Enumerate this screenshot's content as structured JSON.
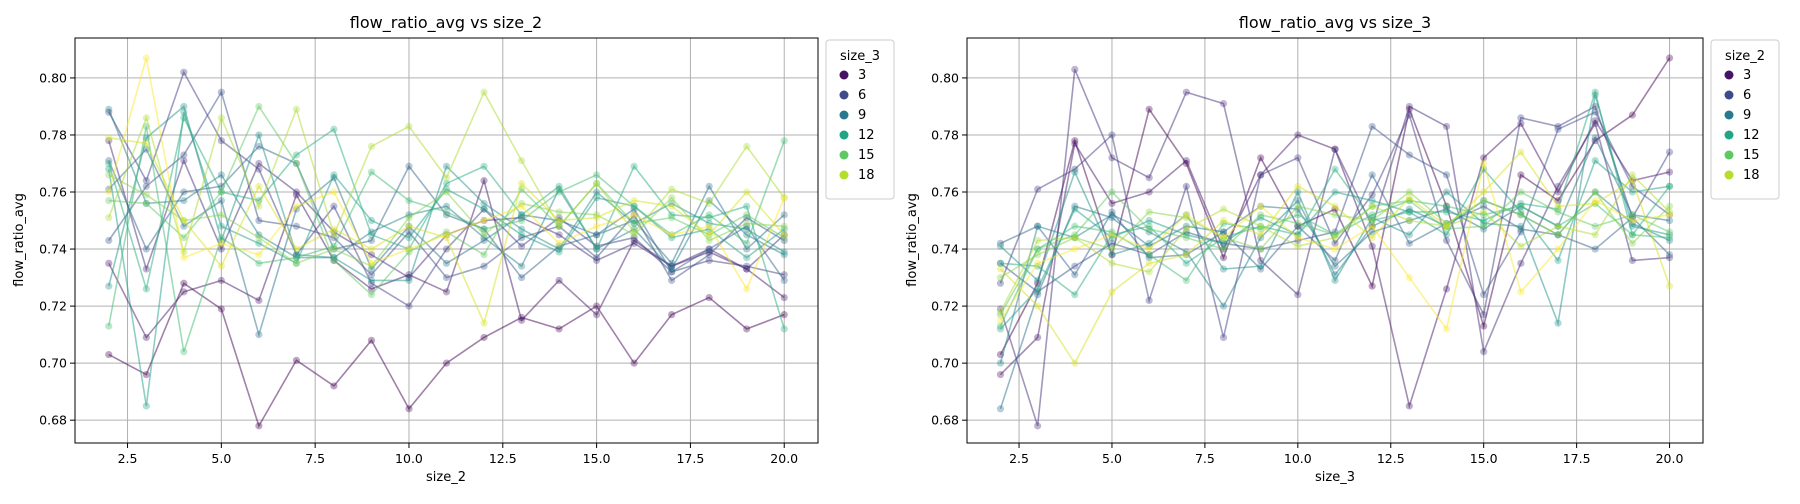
{
  "chart_data": [
    {
      "type": "line",
      "title": "flow_ratio_avg vs size_2",
      "xlabel": "size_2",
      "ylabel": "flow_ratio_avg",
      "xlim": [
        1.1,
        20.9
      ],
      "ylim": [
        0.672,
        0.814
      ],
      "xticks": [
        2.5,
        5.0,
        7.5,
        10.0,
        12.5,
        15.0,
        17.5,
        20.0
      ],
      "xtick_labels": [
        "2.5",
        "5.0",
        "7.5",
        "10.0",
        "12.5",
        "15.0",
        "17.5",
        "20.0"
      ],
      "yticks": [
        0.68,
        0.7,
        0.72,
        0.74,
        0.76,
        0.78,
        0.8
      ],
      "ytick_labels": [
        "0.68",
        "0.70",
        "0.72",
        "0.74",
        "0.76",
        "0.78",
        "0.80"
      ],
      "grid": true,
      "legend_placement": "outside-right-top",
      "legend_title": "size_3",
      "legend": [
        {
          "label": "3",
          "color": "#471365"
        },
        {
          "label": "6",
          "color": "#3e4a89"
        },
        {
          "label": "9",
          "color": "#2a788e"
        },
        {
          "label": "12",
          "color": "#21a585"
        },
        {
          "label": "15",
          "color": "#5ec962"
        },
        {
          "label": "18",
          "color": "#b5de2b"
        }
      ],
      "x": [
        2,
        3,
        4,
        5,
        6,
        7,
        8,
        9,
        10,
        11,
        12,
        13,
        14,
        15,
        16,
        17,
        18,
        19,
        20
      ],
      "series": [
        {
          "color": "#440154",
          "values": [
            0.703,
            0.696,
            0.728,
            0.719,
            0.678,
            0.701,
            0.692,
            0.708,
            0.684,
            0.7,
            0.709,
            0.716,
            0.712,
            0.72,
            0.7,
            0.717,
            0.723,
            0.712,
            0.717
          ]
        },
        {
          "color": "#48186a",
          "values": [
            0.735,
            0.709,
            0.725,
            0.729,
            0.722,
            0.759,
            0.736,
            0.726,
            0.731,
            0.725,
            0.764,
            0.715,
            0.729,
            0.717,
            0.743,
            0.734,
            0.739,
            0.733,
            0.723
          ]
        },
        {
          "color": "#472d7b",
          "values": [
            0.778,
            0.733,
            0.771,
            0.74,
            0.77,
            0.76,
            0.746,
            0.738,
            0.73,
            0.745,
            0.75,
            0.751,
            0.745,
            0.736,
            0.742,
            0.734,
            0.74,
            0.733,
            0.745
          ]
        },
        {
          "color": "#424086",
          "values": [
            0.788,
            0.764,
            0.802,
            0.778,
            0.768,
            0.738,
            0.755,
            0.728,
            0.72,
            0.74,
            0.754,
            0.741,
            0.751,
            0.741,
            0.744,
            0.732,
            0.736,
            0.734,
            0.731
          ]
        },
        {
          "color": "#3b528b",
          "values": [
            0.743,
            0.762,
            0.773,
            0.795,
            0.75,
            0.748,
            0.744,
            0.731,
            0.746,
            0.73,
            0.734,
            0.744,
            0.748,
            0.737,
            0.752,
            0.729,
            0.738,
            0.751,
            0.743
          ]
        },
        {
          "color": "#33638d",
          "values": [
            0.771,
            0.74,
            0.76,
            0.762,
            0.776,
            0.77,
            0.74,
            0.743,
            0.769,
            0.752,
            0.747,
            0.73,
            0.741,
            0.745,
            0.754,
            0.732,
            0.74,
            0.748,
            0.729
          ]
        },
        {
          "color": "#2c728e",
          "values": [
            0.761,
            0.775,
            0.748,
            0.757,
            0.71,
            0.754,
            0.765,
            0.733,
            0.748,
            0.735,
            0.743,
            0.752,
            0.75,
            0.745,
            0.75,
            0.735,
            0.762,
            0.74,
            0.752
          ]
        },
        {
          "color": "#26828e",
          "values": [
            0.789,
            0.756,
            0.757,
            0.766,
            0.745,
            0.737,
            0.737,
            0.746,
            0.752,
            0.755,
            0.744,
            0.734,
            0.761,
            0.74,
            0.747,
            0.733,
            0.757,
            0.745,
            0.738
          ]
        },
        {
          "color": "#21918c",
          "values": [
            0.727,
            0.779,
            0.79,
            0.743,
            0.78,
            0.738,
            0.737,
            0.729,
            0.729,
            0.769,
            0.756,
            0.747,
            0.74,
            0.76,
            0.749,
            0.756,
            0.749,
            0.747,
            0.739
          ]
        },
        {
          "color": "#1fa088",
          "values": [
            0.768,
            0.685,
            0.788,
            0.748,
            0.742,
            0.735,
            0.766,
            0.75,
            0.744,
            0.761,
            0.754,
            0.745,
            0.739,
            0.758,
            0.755,
            0.744,
            0.747,
            0.737,
            0.747
          ]
        },
        {
          "color": "#28ae80",
          "values": [
            0.77,
            0.726,
            0.786,
            0.76,
            0.757,
            0.773,
            0.782,
            0.745,
            0.74,
            0.763,
            0.769,
            0.752,
            0.762,
            0.74,
            0.769,
            0.752,
            0.751,
            0.755,
            0.712
          ]
        },
        {
          "color": "#3fbc73",
          "values": [
            0.713,
            0.783,
            0.704,
            0.744,
            0.735,
            0.737,
            0.741,
            0.767,
            0.757,
            0.753,
            0.747,
            0.75,
            0.76,
            0.766,
            0.755,
            0.745,
            0.752,
            0.742,
            0.778
          ]
        },
        {
          "color": "#5ec962",
          "values": [
            0.757,
            0.756,
            0.744,
            0.76,
            0.79,
            0.77,
            0.736,
            0.724,
            0.739,
            0.746,
            0.738,
            0.761,
            0.748,
            0.763,
            0.749,
            0.751,
            0.745,
            0.752,
            0.744
          ]
        },
        {
          "color": "#84d44b",
          "values": [
            0.766,
            0.759,
            0.75,
            0.752,
            0.744,
            0.735,
            0.74,
            0.734,
            0.751,
            0.76,
            0.745,
            0.756,
            0.753,
            0.752,
            0.745,
            0.758,
            0.743,
            0.749,
            0.748
          ]
        },
        {
          "color": "#addc30",
          "values": [
            0.751,
            0.786,
            0.739,
            0.786,
            0.755,
            0.789,
            0.745,
            0.776,
            0.783,
            0.765,
            0.795,
            0.771,
            0.748,
            0.763,
            0.746,
            0.761,
            0.756,
            0.776,
            0.758
          ]
        },
        {
          "color": "#d8e219",
          "values": [
            0.779,
            0.777,
            0.75,
            0.734,
            0.762,
            0.74,
            0.747,
            0.74,
            0.748,
            0.744,
            0.714,
            0.763,
            0.75,
            0.751,
            0.757,
            0.755,
            0.745,
            0.76,
            0.745
          ]
        },
        {
          "color": "#fde725",
          "values": [
            0.76,
            0.807,
            0.737,
            0.742,
            0.738,
            0.755,
            0.76,
            0.735,
            0.74,
            0.745,
            0.75,
            0.755,
            0.742,
            0.748,
            0.752,
            0.745,
            0.748,
            0.726,
            0.758
          ]
        }
      ]
    },
    {
      "type": "line",
      "title": "flow_ratio_avg vs size_3",
      "xlabel": "size_3",
      "ylabel": "flow_ratio_avg",
      "xlim": [
        1.1,
        20.9
      ],
      "ylim": [
        0.672,
        0.814
      ],
      "xticks": [
        2.5,
        5.0,
        7.5,
        10.0,
        12.5,
        15.0,
        17.5,
        20.0
      ],
      "xtick_labels": [
        "2.5",
        "5.0",
        "7.5",
        "10.0",
        "12.5",
        "15.0",
        "17.5",
        "20.0"
      ],
      "yticks": [
        0.68,
        0.7,
        0.72,
        0.74,
        0.76,
        0.78,
        0.8
      ],
      "ytick_labels": [
        "0.68",
        "0.70",
        "0.72",
        "0.74",
        "0.76",
        "0.78",
        "0.80"
      ],
      "grid": true,
      "legend_placement": "outside-right-top",
      "legend_title": "size_2",
      "legend": [
        {
          "label": "3",
          "color": "#471365"
        },
        {
          "label": "6",
          "color": "#3e4a89"
        },
        {
          "label": "9",
          "color": "#2a788e"
        },
        {
          "label": "12",
          "color": "#21a585"
        },
        {
          "label": "15",
          "color": "#5ec962"
        },
        {
          "label": "18",
          "color": "#b5de2b"
        }
      ],
      "x": [
        2,
        3,
        4,
        5,
        6,
        7,
        8,
        9,
        10,
        11,
        12,
        13,
        14,
        15,
        16,
        17,
        18,
        19,
        20
      ],
      "series": [
        {
          "color": "#440154",
          "values": [
            0.703,
            0.728,
            0.778,
            0.738,
            0.789,
            0.77,
            0.737,
            0.772,
            0.748,
            0.754,
            0.727,
            0.789,
            0.755,
            0.713,
            0.766,
            0.757,
            0.778,
            0.787,
            0.807
          ]
        },
        {
          "color": "#48186a",
          "values": [
            0.696,
            0.709,
            0.777,
            0.756,
            0.76,
            0.771,
            0.74,
            0.766,
            0.78,
            0.775,
            0.741,
            0.685,
            0.726,
            0.772,
            0.784,
            0.76,
            0.785,
            0.764,
            0.767
          ]
        },
        {
          "color": "#472d7b",
          "values": [
            0.719,
            0.678,
            0.803,
            0.772,
            0.765,
            0.795,
            0.791,
            0.736,
            0.724,
            0.775,
            0.748,
            0.79,
            0.783,
            0.704,
            0.735,
            0.762,
            0.784,
            0.736,
            0.737
          ]
        },
        {
          "color": "#424086",
          "values": [
            0.728,
            0.761,
            0.768,
            0.78,
            0.722,
            0.762,
            0.709,
            0.766,
            0.772,
            0.742,
            0.759,
            0.787,
            0.743,
            0.717,
            0.786,
            0.783,
            0.79,
            0.751,
            0.774
          ]
        },
        {
          "color": "#3b528b",
          "values": [
            0.735,
            0.725,
            0.734,
            0.742,
            0.738,
            0.746,
            0.742,
            0.74,
            0.743,
            0.746,
            0.783,
            0.773,
            0.766,
            0.724,
            0.746,
            0.782,
            0.788,
            0.762,
            0.752
          ]
        },
        {
          "color": "#33638d",
          "values": [
            0.742,
            0.748,
            0.731,
            0.753,
            0.737,
            0.738,
            0.746,
            0.733,
            0.748,
            0.736,
            0.766,
            0.742,
            0.749,
            0.755,
            0.747,
            0.745,
            0.74,
            0.751,
            0.738
          ]
        },
        {
          "color": "#2c728e",
          "values": [
            0.684,
            0.724,
            0.755,
            0.751,
            0.741,
            0.748,
            0.746,
            0.755,
            0.754,
            0.734,
            0.746,
            0.75,
            0.754,
            0.747,
            0.755,
            0.748,
            0.779,
            0.752,
            0.75
          ]
        },
        {
          "color": "#26828e",
          "values": [
            0.7,
            0.748,
            0.744,
            0.752,
            0.746,
            0.739,
            0.72,
            0.744,
            0.757,
            0.731,
            0.748,
            0.754,
            0.748,
            0.757,
            0.752,
            0.745,
            0.76,
            0.749,
            0.743
          ]
        },
        {
          "color": "#21918c",
          "values": [
            0.741,
            0.729,
            0.767,
            0.738,
            0.742,
            0.752,
            0.733,
            0.734,
            0.76,
            0.729,
            0.751,
            0.745,
            0.76,
            0.749,
            0.748,
            0.714,
            0.794,
            0.748,
            0.745
          ]
        },
        {
          "color": "#1fa088",
          "values": [
            0.712,
            0.726,
            0.754,
            0.744,
            0.75,
            0.745,
            0.742,
            0.751,
            0.745,
            0.76,
            0.757,
            0.753,
            0.745,
            0.768,
            0.753,
            0.736,
            0.771,
            0.76,
            0.762
          ]
        },
        {
          "color": "#28ae80",
          "values": [
            0.735,
            0.734,
            0.724,
            0.745,
            0.748,
            0.735,
            0.744,
            0.748,
            0.745,
            0.768,
            0.75,
            0.753,
            0.753,
            0.75,
            0.756,
            0.754,
            0.795,
            0.745,
            0.762
          ]
        },
        {
          "color": "#3fbc73",
          "values": [
            0.713,
            0.74,
            0.748,
            0.746,
            0.738,
            0.729,
            0.749,
            0.747,
            0.752,
            0.745,
            0.752,
            0.757,
            0.755,
            0.752,
            0.755,
            0.748,
            0.756,
            0.745,
            0.744
          ]
        },
        {
          "color": "#5ec962",
          "values": [
            0.717,
            0.74,
            0.745,
            0.76,
            0.747,
            0.744,
            0.74,
            0.752,
            0.749,
            0.745,
            0.755,
            0.757,
            0.747,
            0.748,
            0.76,
            0.753,
            0.748,
            0.752,
            0.746
          ]
        },
        {
          "color": "#84d44b",
          "values": [
            0.73,
            0.738,
            0.744,
            0.74,
            0.753,
            0.751,
            0.744,
            0.74,
            0.755,
            0.752,
            0.75,
            0.76,
            0.749,
            0.757,
            0.752,
            0.745,
            0.76,
            0.742,
            0.755
          ]
        },
        {
          "color": "#addc30",
          "values": [
            0.718,
            0.743,
            0.744,
            0.735,
            0.732,
            0.747,
            0.754,
            0.748,
            0.741,
            0.744,
            0.755,
            0.75,
            0.748,
            0.753,
            0.741,
            0.748,
            0.745,
            0.766,
            0.753
          ]
        },
        {
          "color": "#d8e219",
          "values": [
            0.733,
            0.72,
            0.7,
            0.725,
            0.735,
            0.738,
            0.75,
            0.745,
            0.762,
            0.755,
            0.744,
            0.758,
            0.748,
            0.76,
            0.774,
            0.755,
            0.756,
            0.764,
            0.727
          ]
        },
        {
          "color": "#fde725",
          "values": [
            0.715,
            0.735,
            0.74,
            0.745,
            0.74,
            0.752,
            0.744,
            0.755,
            0.744,
            0.74,
            0.748,
            0.73,
            0.712,
            0.77,
            0.725,
            0.74,
            0.757,
            0.75,
            0.752
          ]
        }
      ]
    }
  ]
}
